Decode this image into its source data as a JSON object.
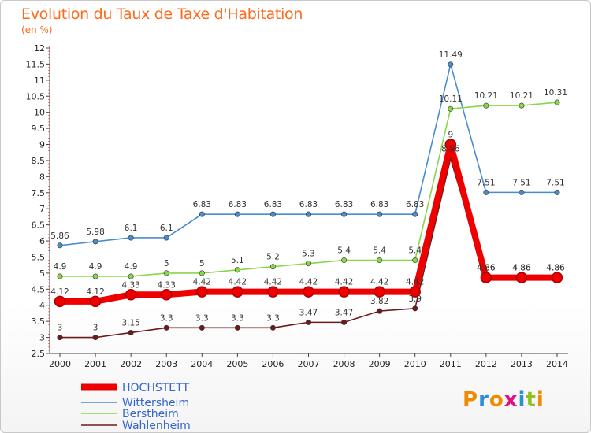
{
  "header": {
    "title": "Evolution du Taux de Taxe d'Habitation",
    "unit": "(en %)"
  },
  "logo": {
    "text": "Proxiti",
    "colors": [
      "#f08a00",
      "#2a8fd8",
      "#f08a00",
      "#e01080",
      "#2a8fd8",
      "#8fc21e",
      "#f08a00"
    ]
  },
  "chart_data": {
    "type": "line",
    "x": [
      "2000",
      "2001",
      "2002",
      "2003",
      "2004",
      "2005",
      "2006",
      "2007",
      "2008",
      "2009",
      "2010",
      "2011",
      "2012",
      "2013",
      "2014"
    ],
    "ylim": [
      2.5,
      12
    ],
    "yticks": [
      "2.5",
      "3",
      "3.5",
      "4",
      "4.5",
      "5",
      "5.5",
      "6",
      "6.5",
      "7",
      "7.5",
      "8",
      "8.5",
      "9",
      "9.5",
      "10",
      "10.5",
      "11",
      "11.5",
      "12"
    ],
    "grid": false,
    "legend_position": "bottom-left",
    "series": [
      {
        "name": "HOCHSTETT",
        "color": "#ee0000",
        "values": [
          4.12,
          4.12,
          4.33,
          4.33,
          4.42,
          4.42,
          4.42,
          4.42,
          4.42,
          4.42,
          4.42,
          9,
          4.86,
          4.86,
          4.86
        ],
        "labels": [
          "4.12",
          "4.12",
          "4.33",
          "4.33",
          "4.42",
          "4.42",
          "4.42",
          "4.42",
          "4.42",
          "4.42",
          "4.42",
          "9",
          "4.86",
          "4.86",
          "4.86"
        ]
      },
      {
        "name": "Wittersheim",
        "color": "#4a8ccc",
        "values": [
          5.86,
          5.98,
          6.1,
          6.1,
          6.83,
          6.83,
          6.83,
          6.83,
          6.83,
          6.83,
          6.83,
          11.49,
          7.51,
          7.51,
          7.51
        ],
        "labels": [
          "5.86",
          "5.98",
          "6.1",
          "6.1",
          "6.83",
          "6.83",
          "6.83",
          "6.83",
          "6.83",
          "6.83",
          "6.83",
          "11.49",
          "7.51",
          "7.51",
          "7.51"
        ]
      },
      {
        "name": "Berstheim",
        "color": "#88d64a",
        "values": [
          4.9,
          4.9,
          4.9,
          5,
          5,
          5.1,
          5.2,
          5.3,
          5.4,
          5.4,
          5.4,
          10.11,
          10.21,
          10.21,
          10.31
        ],
        "labels": [
          "4.9",
          "4.9",
          "4.9",
          "5",
          "5",
          "5.1",
          "5.2",
          "5.3",
          "5.4",
          "5.4",
          "5.4",
          "10.11",
          "10.21",
          "10.21",
          "10.31"
        ]
      },
      {
        "name": "Wahlenheim",
        "color": "#6e1a1a",
        "values": [
          3,
          3,
          3.15,
          3.3,
          3.3,
          3.3,
          3.3,
          3.47,
          3.47,
          3.82,
          3.9,
          8.56,
          4.86,
          4.86,
          4.86
        ],
        "labels": [
          "3",
          "3",
          "3.15",
          "3.3",
          "3.3",
          "3.3",
          "3.3",
          "3.47",
          "3.47",
          "3.82",
          "3.9",
          "8.56",
          "4.86",
          "4.86",
          "4.86"
        ]
      }
    ]
  }
}
